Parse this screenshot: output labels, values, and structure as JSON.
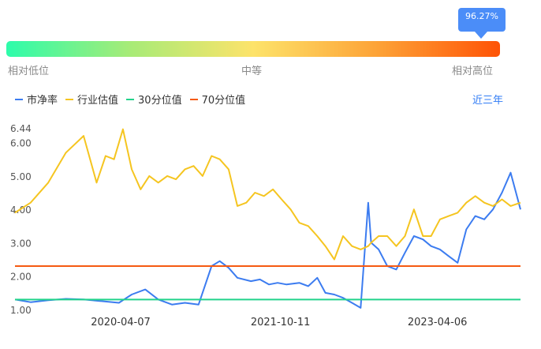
{
  "gauge": {
    "percentile_label": "96.27%",
    "percentile": 0.9627,
    "low_label": "相对低位",
    "mid_label": "中等",
    "high_label": "相对高位"
  },
  "legend": {
    "items": [
      {
        "label": "市净率",
        "color": "#3c7cf0"
      },
      {
        "label": "行业估值",
        "color": "#f5c520"
      },
      {
        "label": "30分位值",
        "color": "#22d38b"
      },
      {
        "label": "70分位值",
        "color": "#f55a12"
      }
    ]
  },
  "period": "近三年",
  "chart_data": {
    "type": "line",
    "y_ticks": [
      "1.00",
      "2.00",
      "3.00",
      "4.00",
      "5.00",
      "6.00",
      "6.44"
    ],
    "y_tick_values": [
      1.0,
      2.0,
      3.0,
      4.0,
      5.0,
      6.0,
      6.44
    ],
    "ylim": [
      1.0,
      6.44
    ],
    "x_ticks": [
      "2020-04-07",
      "2021-10-11",
      "2023-04-06"
    ],
    "x_tick_values": [
      "2020-04-07",
      "2021-10-11",
      "2023-04-06"
    ],
    "xlim": [
      "2019-04-08",
      "2024-01-18"
    ],
    "series": [
      {
        "name": "市净率",
        "color": "#3c7cf0",
        "x": [
          "2019-04-08",
          "2019-06-01",
          "2019-08-01",
          "2019-10-01",
          "2019-12-01",
          "2020-02-01",
          "2020-04-01",
          "2020-05-15",
          "2020-07-01",
          "2020-08-15",
          "2020-10-01",
          "2020-11-15",
          "2021-01-01",
          "2021-02-15",
          "2021-03-15",
          "2021-04-15",
          "2021-05-15",
          "2021-07-01",
          "2021-08-01",
          "2021-09-01",
          "2021-10-01",
          "2021-11-01",
          "2021-12-15",
          "2022-01-15",
          "2022-02-15",
          "2022-03-15",
          "2022-04-15",
          "2022-05-15",
          "2022-06-15",
          "2022-07-15",
          "2022-08-10",
          "2022-08-20",
          "2022-09-15",
          "2022-10-15",
          "2022-11-15",
          "2022-12-15",
          "2023-01-15",
          "2023-02-15",
          "2023-03-15",
          "2023-04-15",
          "2023-05-15",
          "2023-06-15",
          "2023-07-15",
          "2023-08-15",
          "2023-09-15",
          "2023-10-15",
          "2023-11-15",
          "2023-12-15",
          "2024-01-18"
        ],
        "values": [
          1.3,
          1.22,
          1.28,
          1.32,
          1.3,
          1.25,
          1.2,
          1.45,
          1.6,
          1.3,
          1.15,
          1.2,
          1.15,
          2.3,
          2.45,
          2.25,
          1.95,
          1.85,
          1.9,
          1.75,
          1.8,
          1.75,
          1.8,
          1.7,
          1.95,
          1.5,
          1.45,
          1.35,
          1.2,
          1.05,
          4.2,
          3.0,
          2.8,
          2.3,
          2.2,
          2.7,
          3.2,
          3.1,
          2.9,
          2.8,
          2.6,
          2.4,
          3.4,
          3.8,
          3.7,
          4.0,
          4.5,
          5.1,
          4.0
        ]
      },
      {
        "name": "行业估值",
        "color": "#f5c520",
        "x": [
          "2019-04-08",
          "2019-06-01",
          "2019-08-01",
          "2019-10-01",
          "2019-12-01",
          "2020-01-15",
          "2020-02-15",
          "2020-03-15",
          "2020-04-15",
          "2020-05-15",
          "2020-06-15",
          "2020-07-15",
          "2020-08-15",
          "2020-09-15",
          "2020-10-15",
          "2020-11-15",
          "2020-12-15",
          "2021-01-15",
          "2021-02-15",
          "2021-03-15",
          "2021-04-15",
          "2021-05-15",
          "2021-06-15",
          "2021-07-15",
          "2021-08-15",
          "2021-09-15",
          "2021-10-15",
          "2021-11-15",
          "2021-12-15",
          "2022-01-15",
          "2022-02-15",
          "2022-03-15",
          "2022-04-15",
          "2022-05-15",
          "2022-06-15",
          "2022-07-15",
          "2022-08-10",
          "2022-08-20",
          "2022-09-15",
          "2022-10-15",
          "2022-11-15",
          "2022-12-15",
          "2023-01-15",
          "2023-02-15",
          "2023-03-15",
          "2023-04-15",
          "2023-05-15",
          "2023-06-15",
          "2023-07-15",
          "2023-08-15",
          "2023-09-15",
          "2023-10-15",
          "2023-11-15",
          "2023-12-15",
          "2024-01-18"
        ],
        "values": [
          3.9,
          4.2,
          4.8,
          5.7,
          6.2,
          4.8,
          5.6,
          5.5,
          6.4,
          5.2,
          4.6,
          5.0,
          4.8,
          5.0,
          4.9,
          5.2,
          5.3,
          5.0,
          5.6,
          5.5,
          5.2,
          4.1,
          4.2,
          4.5,
          4.4,
          4.6,
          4.3,
          4.0,
          3.6,
          3.5,
          3.2,
          2.9,
          2.5,
          3.2,
          2.9,
          2.8,
          2.9,
          3.0,
          3.2,
          3.2,
          2.9,
          3.2,
          4.0,
          3.2,
          3.2,
          3.7,
          3.8,
          3.9,
          4.2,
          4.4,
          4.2,
          4.1,
          4.3,
          4.1,
          4.2
        ]
      },
      {
        "name": "30分位值",
        "color": "#22d38b",
        "constant": 1.3
      },
      {
        "name": "70分位值",
        "color": "#f55a12",
        "constant": 2.3
      }
    ]
  }
}
